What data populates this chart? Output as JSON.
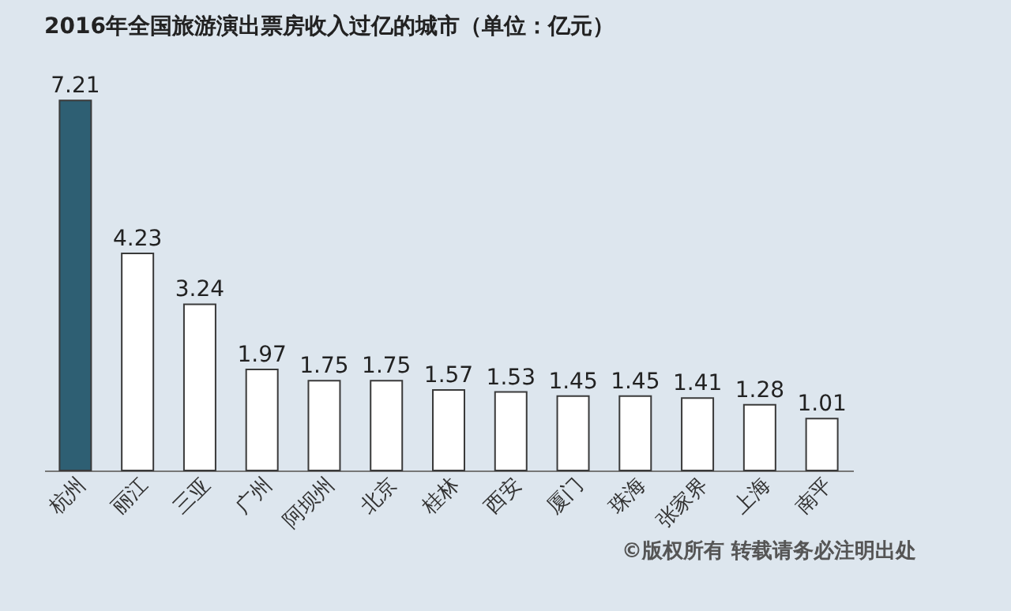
{
  "chart_data": {
    "type": "bar",
    "title": "2016年全国旅游演出票房收入过亿的城市（单位：亿元）",
    "categories": [
      "杭州",
      "丽江",
      "三亚",
      "广州",
      "阿坝州",
      "北京",
      "桂林",
      "西安",
      "厦门",
      "珠海",
      "张家界",
      "上海",
      "南平"
    ],
    "values": [
      7.21,
      4.23,
      3.24,
      1.97,
      1.75,
      1.75,
      1.57,
      1.53,
      1.45,
      1.45,
      1.41,
      1.28,
      1.01
    ],
    "colors": [
      "#2e5f73",
      "#ffffff",
      "#ffffff",
      "#ffffff",
      "#ffffff",
      "#ffffff",
      "#ffffff",
      "#ffffff",
      "#ffffff",
      "#ffffff",
      "#ffffff",
      "#ffffff",
      "#ffffff"
    ],
    "data_labels": true,
    "grid": false,
    "annotations": [
      "©版权所有   转载请务必注明出处"
    ]
  }
}
